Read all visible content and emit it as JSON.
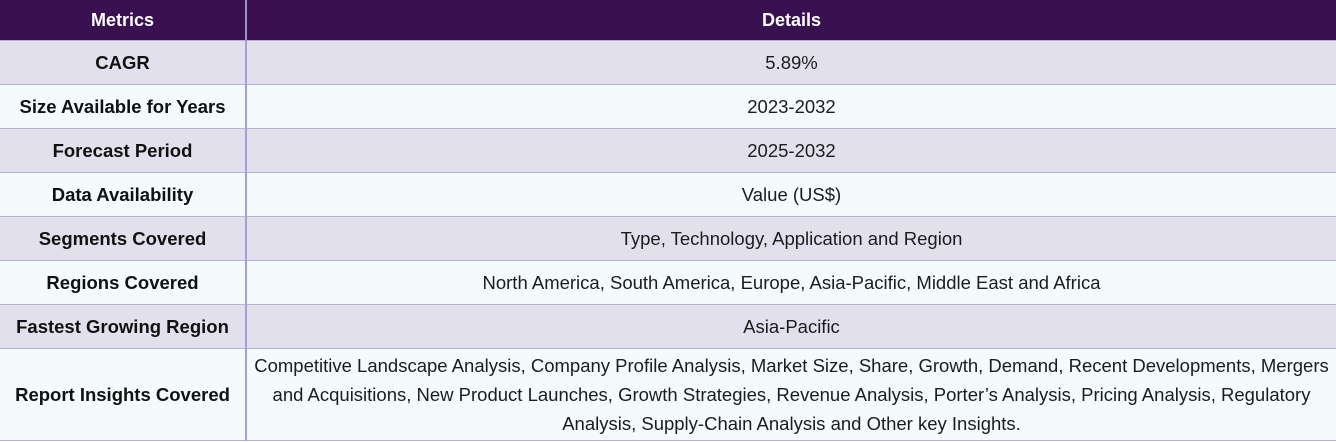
{
  "table": {
    "headers": [
      "Metrics",
      "Details"
    ],
    "rows": [
      {
        "metric": "CAGR",
        "details": "5.89%"
      },
      {
        "metric": "Size Available for Years",
        "details": "2023-2032"
      },
      {
        "metric": "Forecast Period",
        "details": "2025-2032"
      },
      {
        "metric": "Data Availability",
        "details": "Value (US$)"
      },
      {
        "metric": "Segments Covered",
        "details": "Type, Technology, Application and Region"
      },
      {
        "metric": "Regions Covered",
        "details": "North America, South America, Europe, Asia-Pacific, Middle East and Africa"
      },
      {
        "metric": "Fastest Growing Region",
        "details": "Asia-Pacific"
      },
      {
        "metric": "Report Insights Covered",
        "details": "Competitive Landscape Analysis, Company Profile Analysis, Market Size, Share, Growth, Demand, Recent Developments, Mergers and Acquisitions, New Product Launches, Growth Strategies, Revenue Analysis, Porter’s Analysis, Pricing Analysis, Regulatory Analysis, Supply-Chain Analysis and Other key Insights."
      }
    ]
  },
  "colors": {
    "header_bg": "#3a1150",
    "row_odd_bg": "#e3e0ed",
    "row_even_bg": "#f5fafd"
  }
}
